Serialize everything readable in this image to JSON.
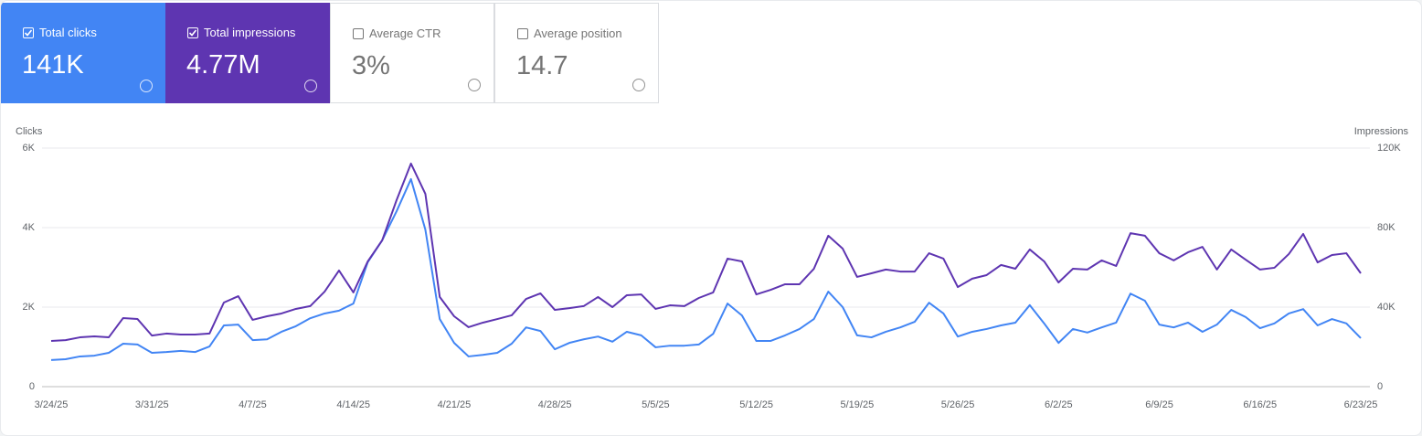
{
  "cards": [
    {
      "label": "Total clicks",
      "value": "141K",
      "selected": true,
      "color": "#4285f4"
    },
    {
      "label": "Total impressions",
      "value": "4.77M",
      "selected": true,
      "color": "#5e35b1"
    },
    {
      "label": "Average CTR",
      "value": "3%",
      "selected": false
    },
    {
      "label": "Average position",
      "value": "14.7",
      "selected": false
    }
  ],
  "chart_data": {
    "type": "line",
    "y_label": "Clicks",
    "y2_label": "Impressions",
    "categories": [
      "3/24/25",
      null,
      null,
      null,
      null,
      null,
      null,
      "3/31/25",
      null,
      null,
      null,
      null,
      null,
      null,
      "4/7/25",
      null,
      null,
      null,
      null,
      null,
      null,
      "4/14/25",
      null,
      null,
      null,
      null,
      null,
      null,
      "4/21/25",
      null,
      null,
      null,
      null,
      null,
      null,
      "4/28/25",
      null,
      null,
      null,
      null,
      null,
      null,
      "5/5/25",
      null,
      null,
      null,
      null,
      null,
      null,
      "5/12/25",
      null,
      null,
      null,
      null,
      null,
      null,
      "5/19/25",
      null,
      null,
      null,
      null,
      null,
      null,
      "5/26/25",
      null,
      null,
      null,
      null,
      null,
      null,
      "6/2/25",
      null,
      null,
      null,
      null,
      null,
      null,
      "6/9/25",
      null,
      null,
      null,
      null,
      null,
      null,
      "6/16/25",
      null,
      null,
      null,
      null,
      null,
      null,
      "6/23/25"
    ],
    "series": [
      {
        "name": "Clicks",
        "color": "#4285f4",
        "values": [
          670,
          690,
          760,
          780,
          850,
          1080,
          1060,
          850,
          870,
          900,
          870,
          1010,
          1540,
          1560,
          1170,
          1190,
          1380,
          1520,
          1720,
          1840,
          1910,
          2090,
          3130,
          3680,
          4410,
          5220,
          3950,
          1700,
          1100,
          760,
          800,
          850,
          1080,
          1490,
          1400,
          940,
          1100,
          1190,
          1260,
          1130,
          1380,
          1290,
          990,
          1030,
          1030,
          1060,
          1330,
          2090,
          1790,
          1150,
          1150,
          1290,
          1450,
          1700,
          2390,
          2000,
          1290,
          1240,
          1380,
          1490,
          1630,
          2110,
          1840,
          1260,
          1380,
          1450,
          1540,
          1610,
          2050,
          1590,
          1100,
          1450,
          1360,
          1490,
          1610,
          2340,
          2160,
          1560,
          1490,
          1610,
          1380,
          1560,
          1930,
          1750,
          1470,
          1590,
          1840,
          1950,
          1540,
          1700,
          1590,
          1220
        ]
      },
      {
        "name": "Impressions",
        "color": "#5e35b1",
        "axis": "y2",
        "values": [
          23000,
          23400,
          24800,
          25300,
          24800,
          34500,
          34000,
          25700,
          26700,
          26200,
          26200,
          26700,
          42300,
          45500,
          33600,
          35400,
          36800,
          39100,
          40500,
          47800,
          58400,
          47400,
          63000,
          73600,
          93800,
          112200,
          97000,
          45100,
          35400,
          29900,
          32200,
          34000,
          35900,
          44100,
          46900,
          38600,
          39500,
          40500,
          45100,
          40000,
          46000,
          46400,
          39100,
          40900,
          40500,
          44600,
          47400,
          64400,
          63000,
          46400,
          48700,
          51500,
          51500,
          59300,
          75900,
          69400,
          55200,
          57000,
          58900,
          57900,
          57900,
          67100,
          64400,
          50100,
          54300,
          56100,
          61200,
          59300,
          69000,
          63000,
          52400,
          59300,
          58900,
          63500,
          60700,
          77200,
          75900,
          67100,
          63500,
          67600,
          70300,
          58900,
          69000,
          63900,
          58900,
          59800,
          66700,
          76800,
          62500,
          66200,
          67100,
          57000
        ]
      }
    ],
    "ylim": [
      0,
      6000
    ],
    "yticks": [
      0,
      {
        "value": 2000,
        "label": "2K"
      },
      {
        "value": 4000,
        "label": "4K"
      },
      {
        "value": 6000,
        "label": "6K"
      }
    ],
    "y2lim": [
      0,
      120000
    ],
    "y2ticks": [
      0,
      {
        "value": 40000,
        "label": "40K"
      },
      {
        "value": 80000,
        "label": "80K"
      },
      {
        "value": 120000,
        "label": "120K"
      }
    ],
    "grid": true
  }
}
